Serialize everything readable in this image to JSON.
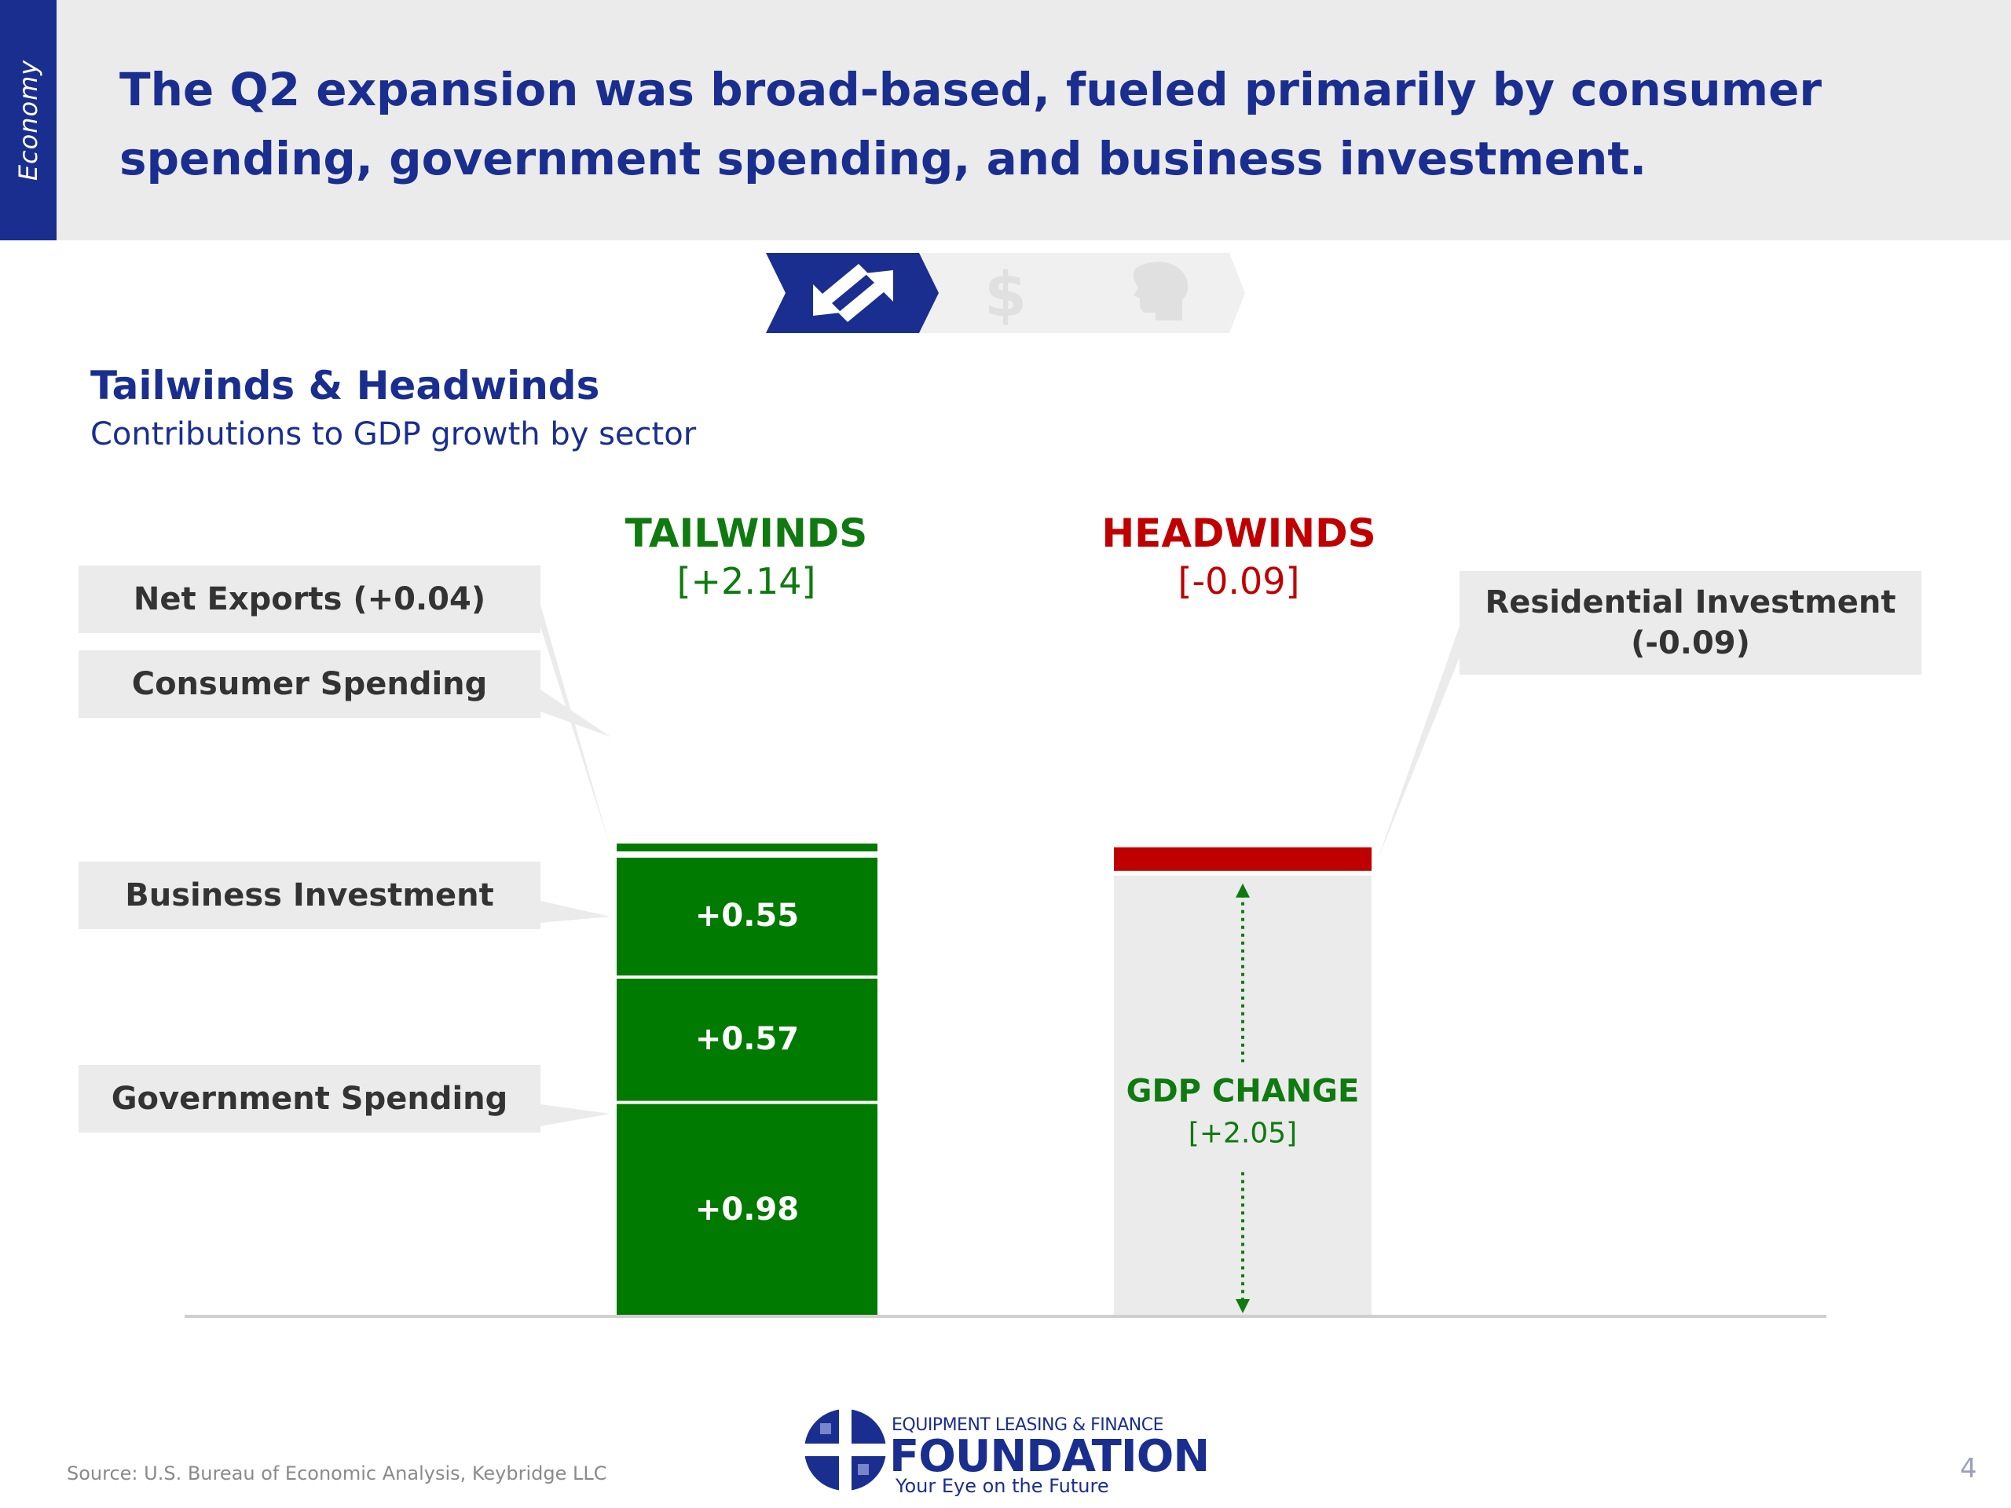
{
  "header": {
    "section_tab": "Economy",
    "title": "The Q2 expansion was broad-based, fueled primarily by consumer spending, government spending, and business investment."
  },
  "nav": {
    "icons": [
      "growth-arrows-icon",
      "dollar-icon",
      "money-head-icon"
    ],
    "active_index": 0
  },
  "chart_data": {
    "type": "bar",
    "title": "Tailwinds & Headwinds",
    "subtitle": "Contributions to GDP growth by sector",
    "tailwinds": {
      "label": "TAILWINDS",
      "total_label": "[+2.14]",
      "total": 2.14,
      "segments": [
        {
          "name": "Government Spending",
          "value": 0.98,
          "value_label": "+0.98",
          "callout": "Government Spending"
        },
        {
          "name": "Business Investment",
          "value": 0.57,
          "value_label": "+0.57",
          "callout": "Business Investment"
        },
        {
          "name": "Consumer Spending",
          "value": 0.55,
          "value_label": "+0.55",
          "callout": "Consumer Spending"
        },
        {
          "name": "Net Exports",
          "value": 0.04,
          "value_label": "",
          "callout": "Net Exports (+0.04)"
        }
      ]
    },
    "headwinds": {
      "label": "HEADWINDS",
      "total_label": "[-0.09]",
      "total": -0.09,
      "segments": [
        {
          "name": "Residential Investment",
          "value": -0.09,
          "callout_line1": "Residential Investment",
          "callout_line2": "(-0.09)"
        }
      ]
    },
    "gdp_change": {
      "label": "GDP CHANGE",
      "value_label": "[+2.05]",
      "value": 2.05
    },
    "colors": {
      "tailwind": "#007a00",
      "headwind": "#c00000",
      "gdp_bar": "#ebebeb",
      "text_green": "#0f7a0f"
    }
  },
  "footer": {
    "source": "Source:  U.S. Bureau of Economic Analysis, Keybridge LLC",
    "page_number": "4",
    "logo": {
      "top_line": "EQUIPMENT LEASING & FINANCE",
      "main": "FOUNDATION",
      "tagline": "Your Eye on the Future"
    }
  }
}
